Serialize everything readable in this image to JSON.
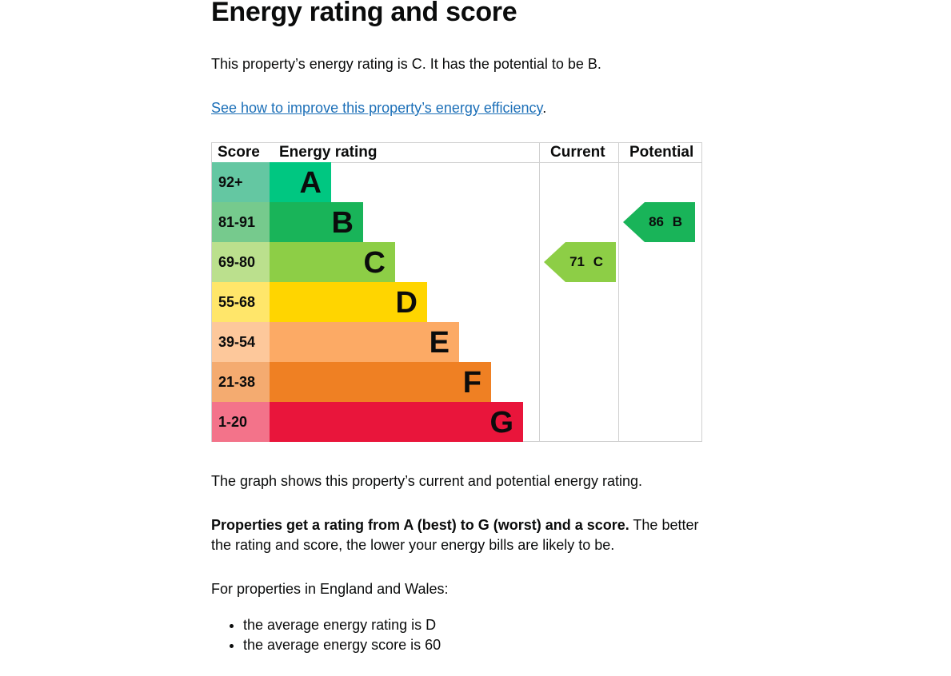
{
  "title": "Energy rating and score",
  "intro": "This property’s energy rating is C. It has the potential to be B.",
  "link": "See how to improve this property’s energy efficiency",
  "link_suffix": ".",
  "chart_data": {
    "type": "table",
    "headers": {
      "score": "Score",
      "rating": "Energy rating",
      "current": "Current",
      "potential": "Potential"
    },
    "bands": [
      {
        "letter": "A",
        "range": "92+",
        "color": "#00c781",
        "score_color": "#64c7a2"
      },
      {
        "letter": "B",
        "range": "81-91",
        "color": "#19b459",
        "score_color": "#76ca8d"
      },
      {
        "letter": "C",
        "range": "69-80",
        "color": "#8dce46",
        "score_color": "#bbe08d"
      },
      {
        "letter": "D",
        "range": "55-68",
        "color": "#ffd500",
        "score_color": "#ffe66a"
      },
      {
        "letter": "E",
        "range": "39-54",
        "color": "#fcaa65",
        "score_color": "#fdc89b"
      },
      {
        "letter": "F",
        "range": "21-38",
        "color": "#ef8023",
        "score_color": "#f4ab70"
      },
      {
        "letter": "G",
        "range": "1-20",
        "color": "#e9153b",
        "score_color": "#f3738a"
      }
    ],
    "current": {
      "score": 71,
      "letter": "C",
      "label": "71 C",
      "color": "#8dce46"
    },
    "potential": {
      "score": 86,
      "letter": "B",
      "label": "86 B",
      "color": "#19b459"
    }
  },
  "graph_note": "The graph shows this property’s current and potential energy rating.",
  "bold_text": "Properties get a rating from A (best) to G (worst) and a score.",
  "rest_text": " The better the rating and score, the lower your energy bills are likely to be.",
  "eng_wales": "For properties in England and Wales:",
  "bullets": [
    "the average energy rating is D",
    "the average energy score is 60"
  ]
}
